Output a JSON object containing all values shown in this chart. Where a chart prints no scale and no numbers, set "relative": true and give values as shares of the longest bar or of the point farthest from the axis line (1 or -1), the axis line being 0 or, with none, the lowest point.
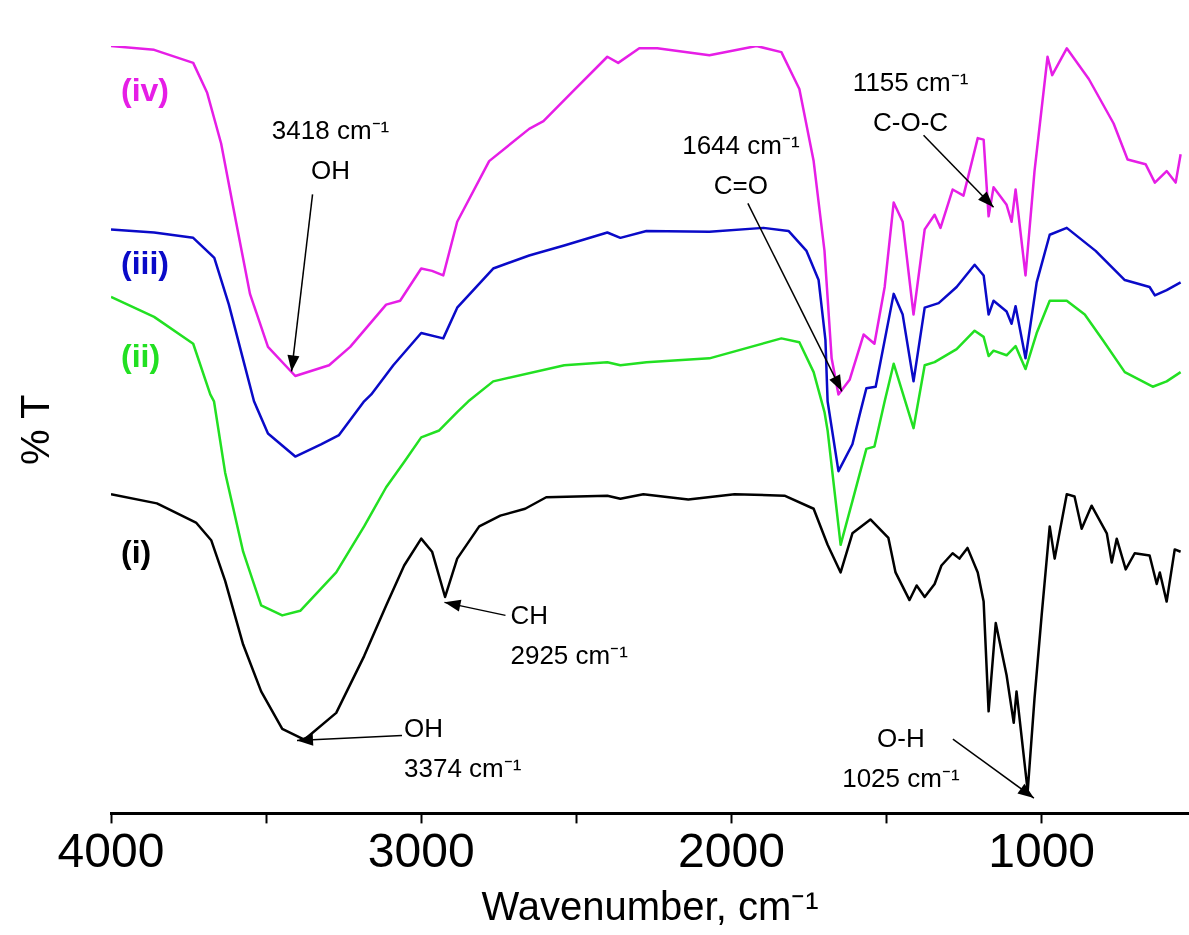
{
  "chart_data": {
    "type": "line",
    "relative": true,
    "xlabel": "Wavenumber, cm⁻¹",
    "ylabel": "% T",
    "xlim": [
      4000,
      525
    ],
    "xticks": [
      4000,
      {
        "value": 3500,
        "label": null
      },
      3000,
      {
        "value": 2500,
        "label": null
      },
      2000,
      {
        "value": 1500,
        "label": null
      },
      1000
    ],
    "series": [
      {
        "name": "(i)",
        "color": "#000000",
        "x": [
          4000,
          3852,
          3726,
          3677,
          3632,
          3574,
          3516,
          3448,
          3377,
          3274,
          3184,
          3113,
          3055,
          3000,
          2965,
          2923,
          2884,
          2813,
          2745,
          2665,
          2597,
          2400,
          2358,
          2284,
          2139,
          1990,
          1829,
          1735,
          1690,
          1648,
          1610,
          1552,
          1494,
          1471,
          1426,
          1403,
          1377,
          1345,
          1323,
          1287,
          1265,
          1239,
          1206,
          1187,
          1171,
          1148,
          1113,
          1090,
          1081,
          1045,
          1023,
          1000,
          974,
          958,
          919,
          894,
          871,
          839,
          790,
          774,
          758,
          729,
          700,
          652,
          629,
          619,
          597,
          571,
          552
        ],
        "values": [
          0.416,
          0.404,
          0.379,
          0.356,
          0.303,
          0.22,
          0.159,
          0.11,
          0.096,
          0.131,
          0.205,
          0.271,
          0.323,
          0.358,
          0.341,
          0.282,
          0.332,
          0.374,
          0.388,
          0.397,
          0.412,
          0.414,
          0.41,
          0.416,
          0.409,
          0.416,
          0.414,
          0.397,
          0.35,
          0.314,
          0.365,
          0.383,
          0.359,
          0.314,
          0.278,
          0.297,
          0.282,
          0.299,
          0.323,
          0.339,
          0.332,
          0.346,
          0.314,
          0.276,
          0.133,
          0.248,
          0.18,
          0.118,
          0.159,
          0.029,
          0.15,
          0.258,
          0.374,
          0.332,
          0.416,
          0.413,
          0.371,
          0.401,
          0.365,
          0.327,
          0.358,
          0.318,
          0.339,
          0.336,
          0.299,
          0.314,
          0.276,
          0.344,
          0.341
        ]
      },
      {
        "name": "(ii)",
        "color": "#22e022",
        "x": [
          4000,
          3861,
          3735,
          3680,
          3668,
          3632,
          3574,
          3516,
          3448,
          3390,
          3274,
          3184,
          3113,
          3055,
          3000,
          2942,
          2884,
          2848,
          2768,
          2539,
          2400,
          2358,
          2274,
          2071,
          1839,
          1781,
          1735,
          1700,
          1690,
          1648,
          1610,
          1565,
          1539,
          1506,
          1477,
          1413,
          1377,
          1345,
          1274,
          1216,
          1187,
          1171,
          1155,
          1113,
          1084,
          1052,
          1016,
          974,
          919,
          861,
          803,
          732,
          642,
          597,
          552
        ],
        "values": [
          0.673,
          0.647,
          0.612,
          0.546,
          0.537,
          0.444,
          0.341,
          0.271,
          0.258,
          0.264,
          0.314,
          0.374,
          0.425,
          0.458,
          0.49,
          0.499,
          0.523,
          0.537,
          0.563,
          0.584,
          0.588,
          0.584,
          0.588,
          0.593,
          0.619,
          0.614,
          0.575,
          0.523,
          0.499,
          0.35,
          0.407,
          0.475,
          0.478,
          0.537,
          0.586,
          0.502,
          0.584,
          0.588,
          0.605,
          0.629,
          0.621,
          0.596,
          0.603,
          0.597,
          0.609,
          0.579,
          0.626,
          0.668,
          0.668,
          0.65,
          0.617,
          0.575,
          0.556,
          0.563,
          0.575
        ]
      },
      {
        "name": "(iii)",
        "color": "#0a0ac8",
        "x": [
          4000,
          3861,
          3735,
          3667,
          3620,
          3575,
          3539,
          3494,
          3406,
          3323,
          3265,
          3184,
          3161,
          3090,
          3000,
          2929,
          2884,
          2768,
          2652,
          2539,
          2400,
          2358,
          2274,
          2071,
          1897,
          1816,
          1758,
          1719,
          1697,
          1690,
          1655,
          1610,
          1587,
          1565,
          1535,
          1477,
          1448,
          1413,
          1377,
          1332,
          1274,
          1216,
          1187,
          1171,
          1155,
          1113,
          1097,
          1084,
          1052,
          1016,
          974,
          919,
          826,
          732,
          652,
          635,
          597,
          552
        ],
        "values": [
          0.761,
          0.757,
          0.75,
          0.724,
          0.663,
          0.593,
          0.537,
          0.495,
          0.465,
          0.481,
          0.493,
          0.537,
          0.546,
          0.584,
          0.626,
          0.619,
          0.659,
          0.71,
          0.727,
          0.74,
          0.757,
          0.75,
          0.759,
          0.758,
          0.763,
          0.759,
          0.733,
          0.695,
          0.617,
          0.537,
          0.446,
          0.481,
          0.519,
          0.554,
          0.556,
          0.677,
          0.65,
          0.563,
          0.659,
          0.665,
          0.686,
          0.715,
          0.701,
          0.65,
          0.668,
          0.654,
          0.638,
          0.661,
          0.593,
          0.692,
          0.754,
          0.763,
          0.733,
          0.695,
          0.686,
          0.675,
          0.682,
          0.692
        ]
      },
      {
        "name": "(iv)",
        "color": "#e61ee6",
        "x": [
          4000,
          3861,
          3735,
          3690,
          3645,
          3597,
          3552,
          3494,
          3406,
          3297,
          3229,
          3113,
          3068,
          3000,
          2965,
          2929,
          2884,
          2781,
          2652,
          2606,
          2516,
          2400,
          2365,
          2297,
          2239,
          2071,
          1919,
          1839,
          1781,
          1735,
          1700,
          1677,
          1655,
          1619,
          1574,
          1539,
          1506,
          1477,
          1448,
          1413,
          1377,
          1345,
          1326,
          1287,
          1252,
          1206,
          1187,
          1171,
          1155,
          1113,
          1097,
          1084,
          1052,
          1023,
          981,
          966,
          919,
          848,
          768,
          723,
          665,
          635,
          597,
          568,
          552
        ],
        "values": [
          1.0,
          0.995,
          0.978,
          0.939,
          0.873,
          0.771,
          0.677,
          0.608,
          0.57,
          0.584,
          0.608,
          0.663,
          0.668,
          0.71,
          0.707,
          0.701,
          0.771,
          0.85,
          0.892,
          0.902,
          0.939,
          0.986,
          0.978,
          0.997,
          0.997,
          0.988,
          1.0,
          0.992,
          0.944,
          0.85,
          0.733,
          0.593,
          0.546,
          0.565,
          0.624,
          0.612,
          0.686,
          0.796,
          0.771,
          0.65,
          0.761,
          0.78,
          0.763,
          0.813,
          0.805,
          0.88,
          0.878,
          0.778,
          0.816,
          0.793,
          0.771,
          0.813,
          0.701,
          0.837,
          0.986,
          0.962,
          0.997,
          0.957,
          0.899,
          0.852,
          0.846,
          0.822,
          0.837,
          0.822,
          0.859
        ]
      }
    ],
    "annotations": [
      {
        "text": "3418 cm⁻¹\nOH",
        "x": 3418,
        "y": 0.576
      },
      {
        "text": "1644 cm⁻¹\nC=O",
        "x": 1644,
        "y": 0.55
      },
      {
        "text": "1155 cm⁻¹\nC-O-C",
        "x": 1155,
        "y": 0.79
      },
      {
        "text": "CH\n2925 cm⁻¹",
        "x": 2925,
        "y": 0.275
      },
      "OH\n3374 cm⁻¹",
      {
        "text": "O-H\n1025 cm⁻¹",
        "x": 1025,
        "y": 0.02
      }
    ]
  }
}
